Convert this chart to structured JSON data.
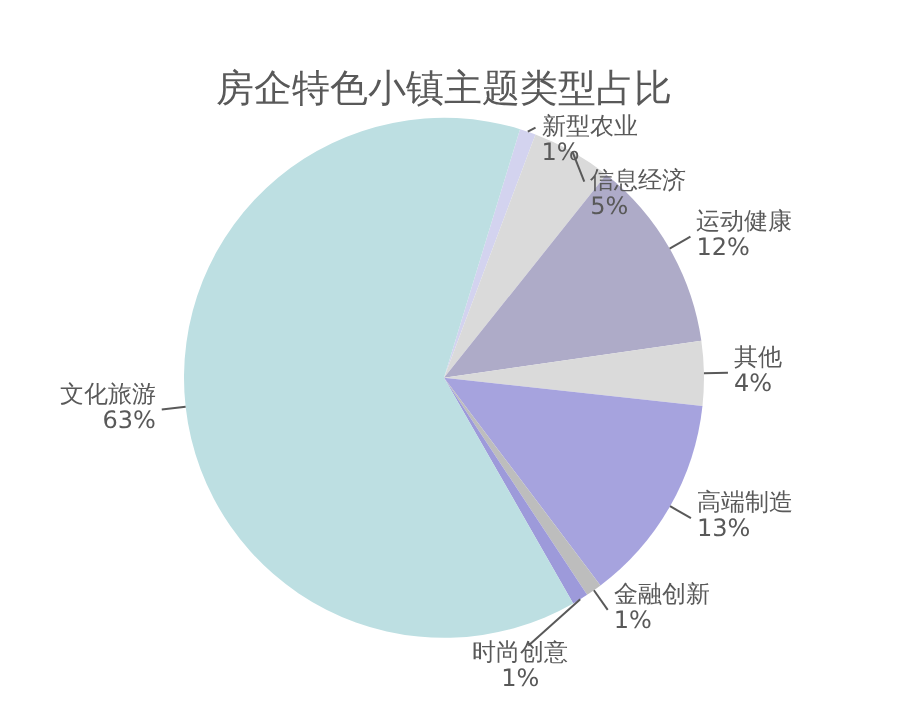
{
  "chart_data": {
    "type": "pie",
    "title": "房企特色小镇主题类型占比",
    "categories": [
      "新型农业",
      "信息经济",
      "运动健康",
      "其他",
      "高端制造",
      "金融创新",
      "时尚创意",
      "文化旅游"
    ],
    "values": [
      1,
      5,
      12,
      4,
      13,
      1,
      1,
      63
    ],
    "value_labels": [
      "1%",
      "5%",
      "12%",
      "4%",
      "13%",
      "1%",
      "1%",
      "63%"
    ],
    "colors": [
      "#d3d3ef",
      "#dadada",
      "#aeabc8",
      "#dadada",
      "#a6a3de",
      "#bdbdbd",
      "#9d9ada",
      "#bddfe2"
    ],
    "legend": false
  }
}
